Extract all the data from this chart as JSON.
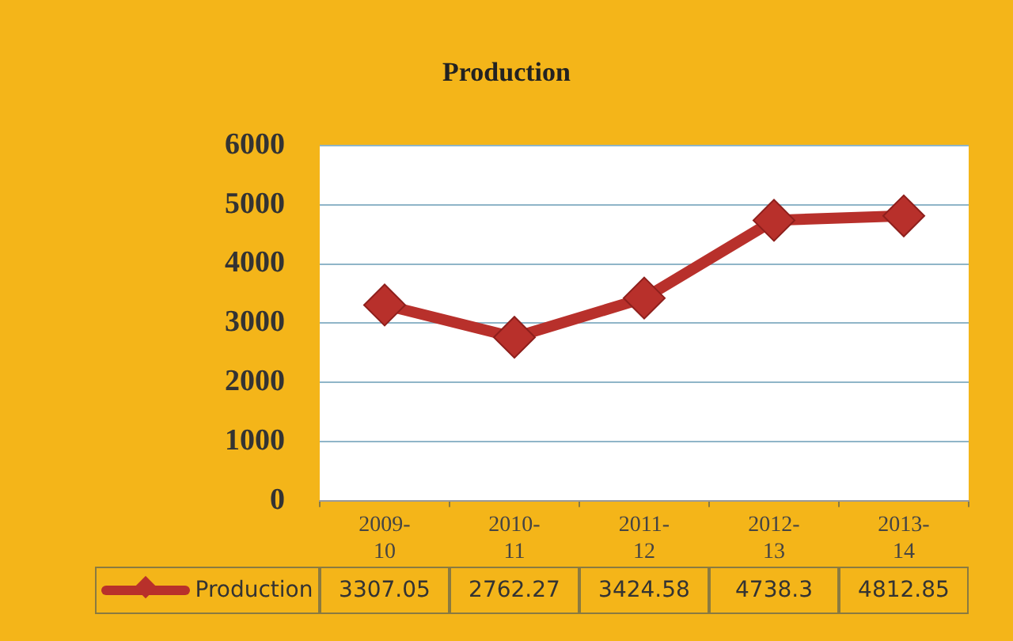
{
  "chart_data": {
    "type": "line",
    "title": "Production",
    "categories": [
      "2009-10",
      "2010-11",
      "2011-12",
      "2012-13",
      "2013-14"
    ],
    "series": [
      {
        "name": "Production",
        "color": "#b8302b",
        "values": [
          3307.05,
          2762.27,
          3424.58,
          4738.3,
          4812.85
        ]
      }
    ],
    "ylim": [
      0,
      6000
    ],
    "yticks": [
      0,
      1000,
      2000,
      3000,
      4000,
      5000,
      6000
    ],
    "grid": "y",
    "legend": "bottom",
    "marker": "diamond",
    "line_style": "solid",
    "data_labels": true
  }
}
